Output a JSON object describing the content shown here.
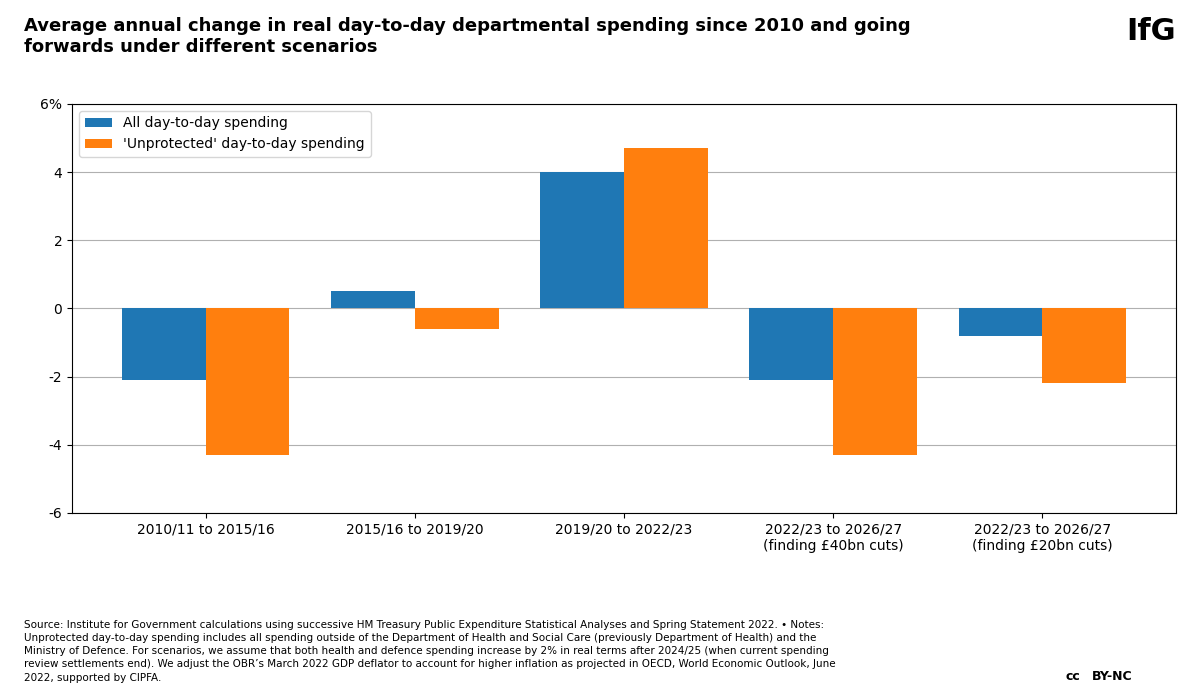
{
  "chart_data": {
    "type": "bar",
    "title": "Average annual change in real day-to-day departmental spending since 2010 and going\nforwards under different scenarios",
    "categories": [
      "2010/11 to 2015/16",
      "2015/16 to 2019/20",
      "2019/20 to 2022/23",
      "2022/23 to 2026/27\n(finding £40bn cuts)",
      "2022/23 to 2026/27\n(finding £20bn cuts)"
    ],
    "series": [
      {
        "name": "All day-to-day spending",
        "values": [
          -2.1,
          0.5,
          4.0,
          -2.1,
          -0.8
        ]
      },
      {
        "name": "'Unprotected' day-to-day spending",
        "values": [
          -4.3,
          -0.6,
          4.7,
          -4.3,
          -2.2
        ]
      }
    ],
    "ylim": [
      -6,
      6
    ],
    "yticks": [
      -6,
      -4,
      -2,
      0,
      2,
      4,
      {
        "value": 6,
        "label": "6%"
      }
    ],
    "grid": true,
    "legend": "upper left",
    "annotations": [
      "IfG",
      "Source: Institute for Government calculations using successive HM Treasury Public Expenditure Statistical Analyses and Spring Statement 2022. • Notes:\nUnprotected day-to-day spending includes all spending outside of the Department of Health and Social Care (previously Department of Health) and the\nMinistry of Defence. For scenarios, we assume that both health and defence spending increase by 2% in real terms after 2024/25 (when current spending\nreview settlements end). We adjust the OBR’s March 2022 GDP deflator to account for higher inflation as projected in OECD, World Economic Outlook, June\n2022, supported by CIPFA.",
      "cc",
      "BY-NC"
    ]
  }
}
